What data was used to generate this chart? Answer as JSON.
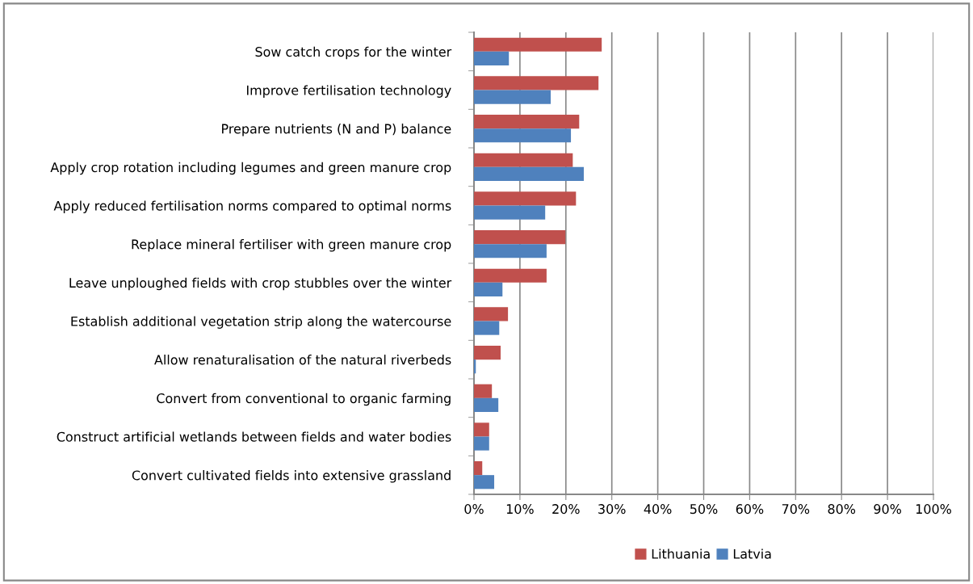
{
  "chart_data": {
    "type": "bar",
    "orientation": "horizontal",
    "categories": [
      "Sow catch crops for the winter",
      "Improve fertilisation technology",
      "Prepare nutrients (N and P) balance",
      "Apply crop rotation including legumes and green manure crop",
      "Apply reduced fertilisation norms compared to optimal norms",
      "Replace mineral fertiliser with green manure crop",
      "Leave unploughed fields with crop stubbles over the winter",
      "Establish additional vegetation strip along the watercourse",
      "Allow renaturalisation of the natural riverbeds",
      "Convert from conventional to organic farming",
      "Construct artificial wetlands between fields and water bodies",
      "Convert cultivated fields into extensive grassland"
    ],
    "series": [
      {
        "name": "Lithuania",
        "color": "#c0504d",
        "values": [
          27.8,
          27.1,
          22.9,
          21.5,
          22.2,
          19.9,
          15.8,
          7.4,
          5.8,
          3.9,
          3.3,
          1.8
        ]
      },
      {
        "name": "Latvia",
        "color": "#4f81bd",
        "values": [
          7.6,
          16.7,
          21.1,
          23.9,
          15.5,
          15.8,
          6.2,
          5.5,
          0.4,
          5.3,
          3.3,
          4.4
        ]
      }
    ],
    "xlim": [
      0,
      100
    ],
    "xticks": [
      {
        "value": 0,
        "label": "0%"
      },
      {
        "value": 10,
        "label": "10%"
      },
      {
        "value": 20,
        "label": "20%"
      },
      {
        "value": 30,
        "label": "30%"
      },
      {
        "value": 40,
        "label": "40%"
      },
      {
        "value": 50,
        "label": "50%"
      },
      {
        "value": 60,
        "label": "60%"
      },
      {
        "value": 70,
        "label": "70%"
      },
      {
        "value": 80,
        "label": "80%"
      },
      {
        "value": 90,
        "label": "90%"
      },
      {
        "value": 100,
        "label": "100%"
      }
    ],
    "grid": "x",
    "legend": "bottom"
  }
}
